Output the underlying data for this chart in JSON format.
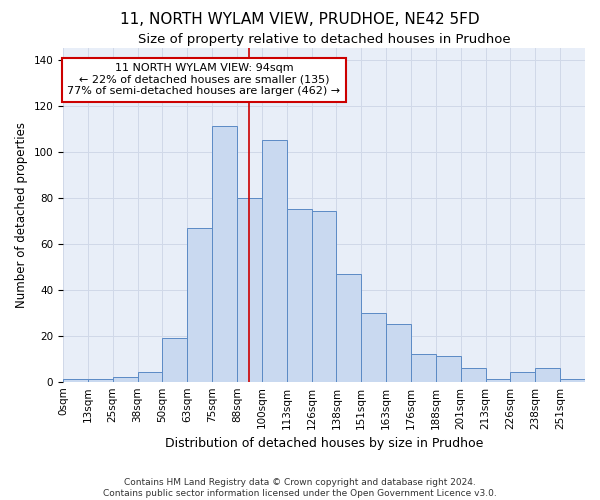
{
  "title": "11, NORTH WYLAM VIEW, PRUDHOE, NE42 5FD",
  "subtitle": "Size of property relative to detached houses in Prudhoe",
  "xlabel": "Distribution of detached houses by size in Prudhoe",
  "ylabel": "Number of detached properties",
  "footer_line1": "Contains HM Land Registry data © Crown copyright and database right 2024.",
  "footer_line2": "Contains public sector information licensed under the Open Government Licence v3.0.",
  "bin_labels": [
    "0sqm",
    "13sqm",
    "25sqm",
    "38sqm",
    "50sqm",
    "63sqm",
    "75sqm",
    "88sqm",
    "100sqm",
    "113sqm",
    "126sqm",
    "138sqm",
    "151sqm",
    "163sqm",
    "176sqm",
    "188sqm",
    "201sqm",
    "213sqm",
    "226sqm",
    "238sqm",
    "251sqm"
  ],
  "bar_values": [
    1,
    1,
    2,
    4,
    19,
    67,
    111,
    80,
    105,
    75,
    74,
    47,
    30,
    25,
    12,
    11,
    6,
    1,
    4,
    6,
    1
  ],
  "bar_color": "#c9d9f0",
  "bar_edge_color": "#5b8ac5",
  "annotation_box_text": "11 NORTH WYLAM VIEW: 94sqm\n← 22% of detached houses are smaller (135)\n77% of semi-detached houses are larger (462) →",
  "annotation_box_color": "#ffffff",
  "annotation_box_edge_color": "#cc0000",
  "property_line_color": "#cc0000",
  "grid_color": "#d0d8e8",
  "background_color": "#e8eef8",
  "ylim": [
    0,
    145
  ],
  "yticks": [
    0,
    20,
    40,
    60,
    80,
    100,
    120,
    140
  ],
  "title_fontsize": 11,
  "subtitle_fontsize": 9.5,
  "tick_fontsize": 7.5,
  "ylabel_fontsize": 8.5,
  "xlabel_fontsize": 9,
  "annotation_fontsize": 8,
  "footer_fontsize": 6.5
}
